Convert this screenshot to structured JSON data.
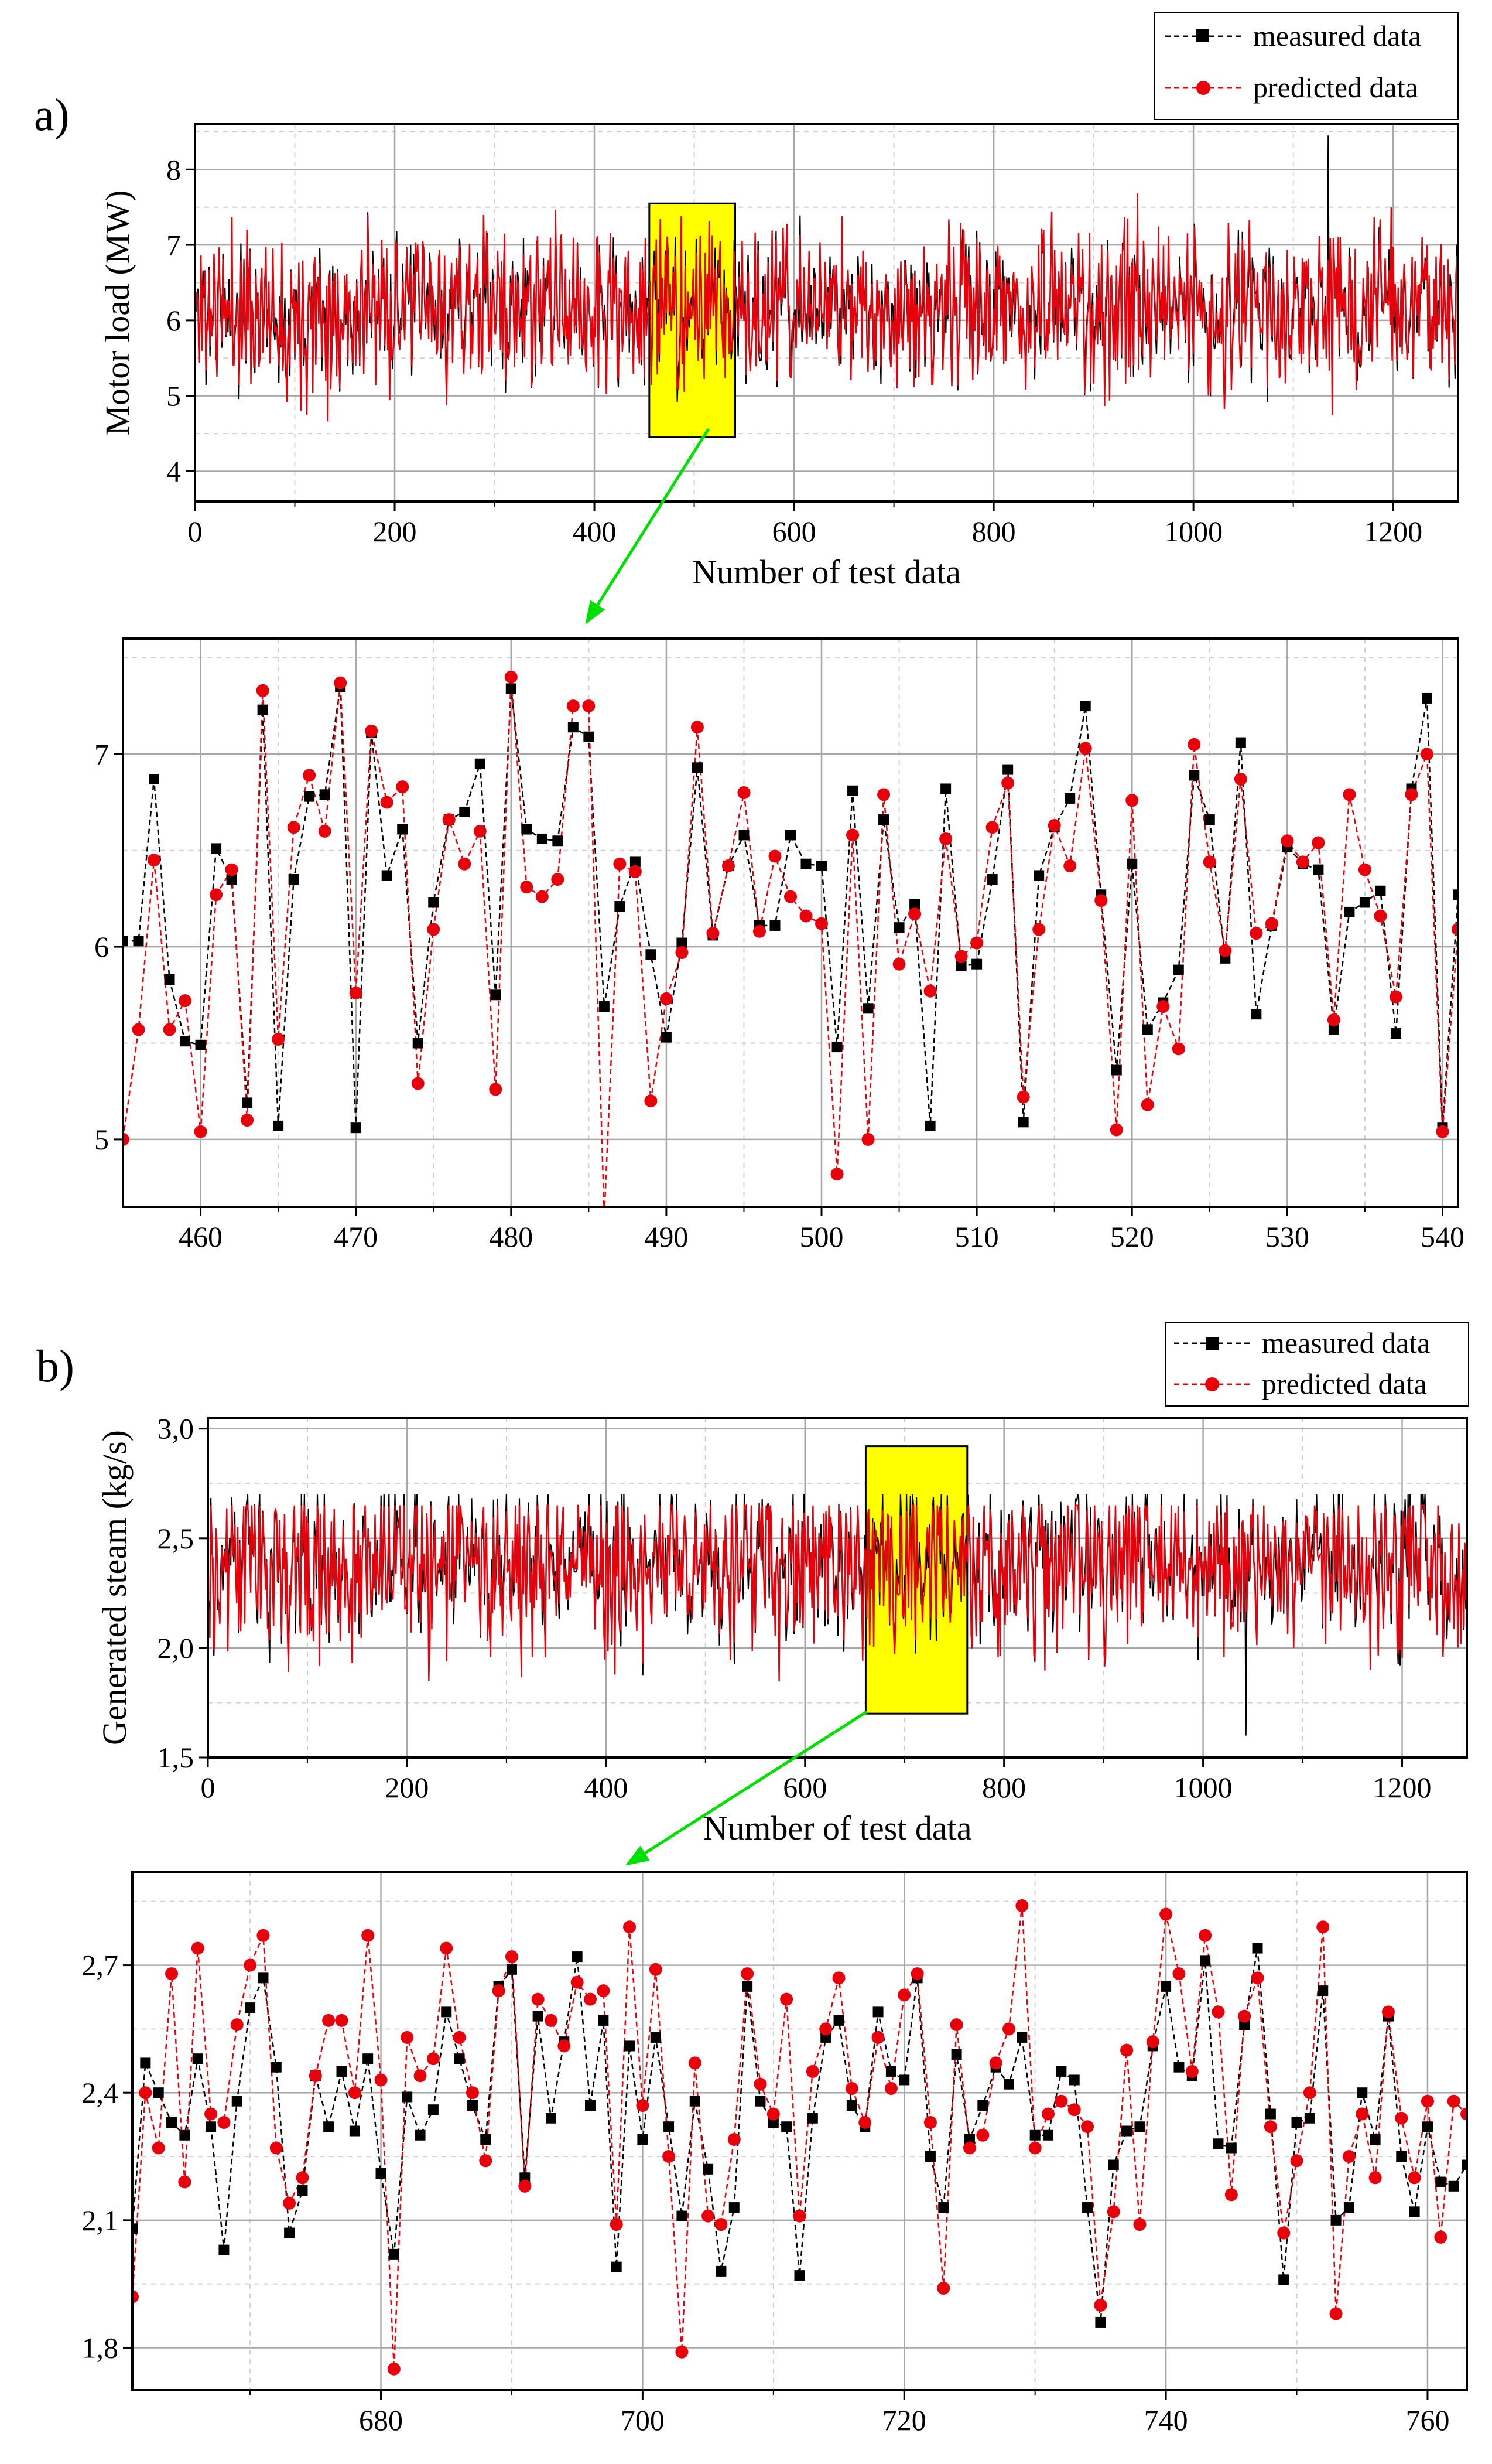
{
  "colors": {
    "measured": "#000000",
    "predicted": "#e8000b",
    "highlight_fill": "#ffff00",
    "arrow": "#00e000",
    "grid_major": "#a8a8a8",
    "grid_minor": "#cfcfcf"
  },
  "chart_data": [
    {
      "id": "a_full",
      "panel_label": "a)",
      "type": "line",
      "xlabel": "Number of test data",
      "ylabel": "Motor load (MW)",
      "xlim": [
        0,
        1265
      ],
      "ylim": [
        3.6,
        8.6
      ],
      "xticks": [
        0,
        200,
        400,
        600,
        800,
        1000,
        1200
      ],
      "yticks": [
        4,
        5,
        6,
        7,
        8
      ],
      "xtick_labels": [
        "0",
        "200",
        "400",
        "600",
        "800",
        "1000",
        "1200"
      ],
      "ytick_labels": [
        "4",
        "5",
        "6",
        "7",
        "8"
      ],
      "legend": [
        "measured data",
        "predicted data"
      ],
      "highlight": {
        "x": [
          455,
          541
        ],
        "y": [
          4.45,
          7.55
        ]
      },
      "synthetic": {
        "n": 1265,
        "center": 6.15,
        "spread": 0.62,
        "min": 4.1,
        "max": 8.4
      },
      "spikes": [
        {
          "x": 1135,
          "y": 8.45
        }
      ]
    },
    {
      "id": "a_zoom",
      "type": "line",
      "xlim": [
        455,
        541
      ],
      "ylim": [
        4.65,
        7.6
      ],
      "xticks": [
        460,
        470,
        480,
        490,
        500,
        510,
        520,
        530,
        540
      ],
      "yticks": [
        5,
        6,
        7
      ],
      "xtick_labels": [
        "460",
        "470",
        "480",
        "490",
        "500",
        "510",
        "520",
        "530",
        "540"
      ],
      "ytick_labels": [
        "5",
        "6",
        "7"
      ],
      "series": [
        {
          "name": "measured data",
          "x_start": 455,
          "values": [
            6.03,
            6.03,
            6.87,
            5.83,
            5.51,
            5.49,
            6.51,
            6.35,
            5.19,
            7.23,
            5.07,
            6.35,
            6.78,
            6.79,
            7.35,
            5.06,
            7.11,
            6.37,
            6.61,
            5.5,
            6.23,
            6.66,
            6.7,
            6.95,
            5.75,
            7.34,
            6.61,
            6.56,
            6.55,
            7.14,
            7.09,
            5.69,
            6.21,
            6.44,
            5.96,
            5.53,
            6.02,
            6.93,
            6.06,
            6.42,
            6.58,
            6.11,
            6.11,
            6.58,
            6.43,
            6.42,
            5.48,
            6.81,
            5.68,
            6.66,
            6.1,
            6.22,
            5.07,
            6.82,
            5.9,
            5.91,
            6.35,
            6.92,
            5.09,
            6.37,
            6.62,
            6.77,
            7.25,
            6.27,
            5.36,
            6.43,
            5.57,
            5.71,
            5.88,
            6.89,
            6.66,
            5.94,
            7.06,
            5.65,
            6.11,
            6.52,
            6.43,
            6.4,
            5.57,
            6.18,
            6.23,
            6.29,
            5.55,
            6.82,
            7.29,
            5.06,
            6.27
          ]
        },
        {
          "name": "predicted data",
          "x_start": 455,
          "values": [
            5.0,
            5.57,
            6.45,
            5.57,
            5.72,
            5.04,
            6.27,
            6.4,
            5.1,
            7.33,
            5.52,
            6.62,
            6.89,
            6.6,
            7.37,
            5.76,
            7.12,
            6.75,
            6.83,
            5.29,
            6.09,
            6.66,
            6.43,
            6.6,
            5.26,
            7.4,
            6.31,
            6.26,
            6.35,
            7.25,
            7.25,
            4.6,
            6.43,
            6.39,
            5.2,
            5.73,
            5.97,
            7.14,
            6.07,
            6.42,
            6.8,
            6.08,
            6.47,
            6.26,
            6.16,
            6.12,
            4.82,
            6.58,
            5.0,
            6.79,
            5.91,
            6.17,
            5.77,
            6.56,
            5.95,
            6.02,
            6.62,
            6.85,
            5.22,
            6.09,
            6.63,
            6.42,
            7.03,
            6.24,
            5.05,
            6.76,
            5.18,
            5.69,
            5.47,
            7.05,
            6.44,
            5.98,
            6.87,
            6.07,
            6.12,
            6.55,
            6.44,
            6.54,
            5.62,
            6.79,
            6.4,
            6.16,
            5.74,
            6.79,
            7.0,
            5.04,
            6.09
          ]
        }
      ]
    },
    {
      "id": "b_full",
      "panel_label": "b)",
      "type": "line",
      "xlabel": "Number of test data",
      "ylabel": "Generated steam (kg/s)",
      "xlim": [
        0,
        1265
      ],
      "ylim": [
        1.5,
        3.05
      ],
      "xticks": [
        0,
        200,
        400,
        600,
        800,
        1000,
        1200
      ],
      "yticks": [
        1.5,
        2.0,
        2.5,
        3.0
      ],
      "xtick_labels": [
        "0",
        "200",
        "400",
        "600",
        "800",
        "1000",
        "1200"
      ],
      "ytick_labels": [
        "1,5",
        "2,0",
        "2,5",
        "3,0"
      ],
      "legend": [
        "measured data",
        "predicted data"
      ],
      "highlight": {
        "x": [
          661,
          763
        ],
        "y": [
          1.7,
          2.92
        ]
      },
      "synthetic": {
        "n": 1265,
        "center": 2.37,
        "spread": 0.24,
        "min": 1.62,
        "max": 2.95
      },
      "spikes": [
        {
          "x": 1043,
          "y": 1.6
        }
      ]
    },
    {
      "id": "b_zoom",
      "type": "line",
      "xlim": [
        661,
        763
      ],
      "ylim": [
        1.7,
        2.92
      ],
      "xticks": [
        680,
        700,
        720,
        740,
        760
      ],
      "yticks": [
        1.8,
        2.1,
        2.4,
        2.7
      ],
      "xtick_labels": [
        "680",
        "700",
        "720",
        "740",
        "760"
      ],
      "ytick_labels": [
        "1,8",
        "2,1",
        "2,4",
        "2,7"
      ],
      "series": [
        {
          "name": "measured data",
          "x_start": 661,
          "values": [
            2.08,
            2.47,
            2.4,
            2.33,
            2.3,
            2.48,
            2.32,
            2.03,
            2.38,
            2.6,
            2.67,
            2.46,
            2.07,
            2.17,
            2.44,
            2.32,
            2.45,
            2.31,
            2.48,
            2.21,
            2.02,
            2.39,
            2.3,
            2.36,
            2.59,
            2.48,
            2.37,
            2.29,
            2.65,
            2.69,
            2.2,
            2.58,
            2.34,
            2.52,
            2.72,
            2.37,
            2.57,
            1.99,
            2.51,
            2.29,
            2.53,
            2.32,
            2.11,
            2.38,
            2.22,
            1.98,
            2.13,
            2.65,
            2.38,
            2.33,
            2.32,
            1.97,
            2.34,
            2.53,
            2.57,
            2.37,
            2.32,
            2.59,
            2.45,
            2.43,
            2.67,
            2.25,
            2.13,
            2.49,
            2.29,
            2.37,
            2.46,
            2.42,
            2.53,
            2.3,
            2.3,
            2.45,
            2.43,
            2.13,
            1.86,
            2.23,
            2.31,
            2.32,
            2.51,
            2.65,
            2.46,
            2.44,
            2.71,
            2.28,
            2.27,
            2.56,
            2.74,
            2.35,
            1.96,
            2.33,
            2.34,
            2.64,
            2.1,
            2.13,
            2.4,
            2.29,
            2.58,
            2.25,
            2.12,
            2.32,
            2.19,
            2.18,
            2.23
          ]
        },
        {
          "name": "predicted data",
          "x_start": 661,
          "values": [
            1.92,
            2.4,
            2.27,
            2.68,
            2.19,
            2.74,
            2.35,
            2.33,
            2.56,
            2.7,
            2.77,
            2.27,
            2.14,
            2.2,
            2.44,
            2.57,
            2.57,
            2.4,
            2.77,
            2.43,
            1.75,
            2.53,
            2.44,
            2.48,
            2.74,
            2.53,
            2.4,
            2.24,
            2.64,
            2.72,
            2.18,
            2.62,
            2.57,
            2.51,
            2.66,
            2.62,
            2.64,
            2.09,
            2.79,
            2.37,
            2.69,
            2.25,
            1.79,
            2.47,
            2.11,
            2.09,
            2.29,
            2.68,
            2.42,
            2.35,
            2.62,
            2.11,
            2.45,
            2.55,
            2.67,
            2.41,
            2.33,
            2.53,
            2.41,
            2.63,
            2.68,
            2.33,
            1.94,
            2.56,
            2.27,
            2.3,
            2.47,
            2.55,
            2.84,
            2.27,
            2.35,
            2.38,
            2.36,
            2.32,
            1.9,
            2.12,
            2.5,
            2.09,
            2.52,
            2.82,
            2.68,
            2.45,
            2.77,
            2.59,
            2.16,
            2.58,
            2.67,
            2.32,
            2.07,
            2.24,
            2.4,
            2.79,
            1.88,
            2.25,
            2.35,
            2.2,
            2.59,
            2.34,
            2.2,
            2.38,
            2.06,
            2.38,
            2.35
          ]
        }
      ]
    }
  ]
}
